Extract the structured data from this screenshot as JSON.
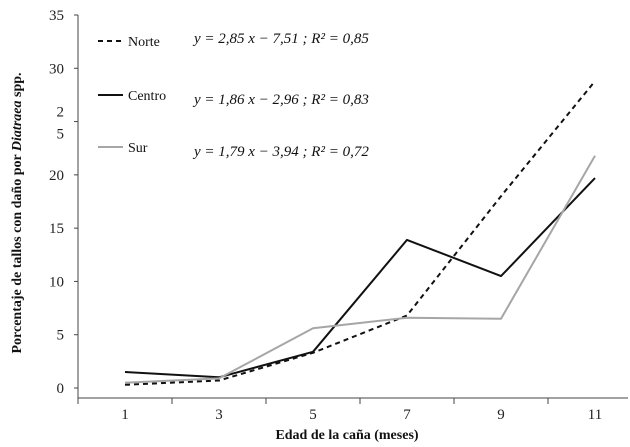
{
  "chart_data": {
    "type": "line",
    "xlabel": "Edad de la caña (meses)",
    "ylabel_prefix": "Porcentaje de tallos con daño por ",
    "ylabel_italic": "Diatraea",
    "ylabel_suffix": " spp.",
    "x": [
      1,
      3,
      5,
      7,
      9,
      11
    ],
    "x_tick_labels": [
      "1",
      "3",
      "5",
      "7",
      "9",
      "11"
    ],
    "ylim": [
      0,
      35
    ],
    "y_tick_labels": [
      "0",
      "5",
      "10",
      "15",
      "20",
      "2\n5",
      "30",
      "35"
    ],
    "y_ticks": [
      0,
      5,
      10,
      15,
      20,
      25,
      30,
      35
    ],
    "grid": false,
    "legend_placement": "top-left",
    "series": [
      {
        "name": "Norte",
        "values": [
          0.3,
          0.7,
          3.3,
          6.8,
          18.0,
          28.8
        ],
        "color": "#111111",
        "dash": "dashed",
        "equation": "y = 2,85 x − 7,51 ; R² = 0,85"
      },
      {
        "name": "Centro",
        "values": [
          1.5,
          1.0,
          3.4,
          13.9,
          10.5,
          19.7
        ],
        "color": "#111111",
        "dash": "solid",
        "equation": "y = 1,86 x − 2,96 ; R² = 0,83"
      },
      {
        "name": "Sur",
        "values": [
          0.5,
          0.9,
          5.6,
          6.6,
          6.5,
          21.8
        ],
        "color": "#a6a6a6",
        "dash": "solid",
        "equation": "y = 1,79 x − 3,94 ; R² = 0,72"
      }
    ]
  }
}
